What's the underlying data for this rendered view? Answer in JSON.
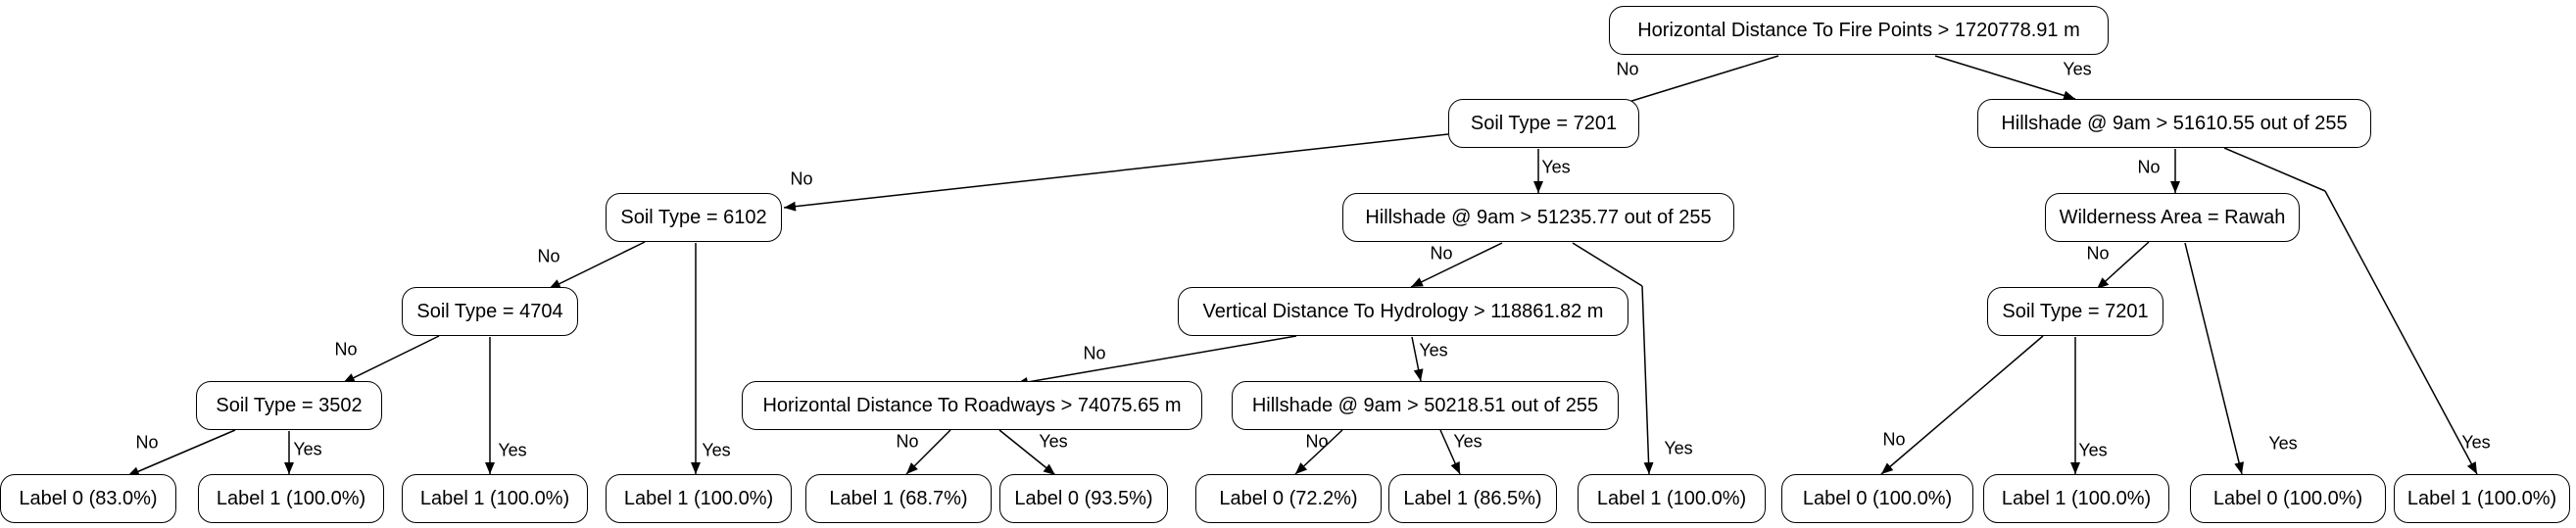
{
  "nodes": [
    {
      "id": "n0",
      "text": "Horizontal Distance To Fire Points > 1720778.91 m"
    },
    {
      "id": "n1",
      "text": "Soil Type = 7201"
    },
    {
      "id": "n2",
      "text": "Hillshade @ 9am > 51610.55 out of 255"
    },
    {
      "id": "n3",
      "text": "Soil Type = 6102"
    },
    {
      "id": "n4",
      "text": "Hillshade @ 9am > 51235.77 out of 255"
    },
    {
      "id": "n5",
      "text": "Wilderness Area = Rawah"
    },
    {
      "id": "n6",
      "text": "Soil Type = 4704"
    },
    {
      "id": "n7",
      "text": "Vertical Distance To Hydrology > 118861.82 m"
    },
    {
      "id": "n8",
      "text": "Soil Type = 7201"
    },
    {
      "id": "n9",
      "text": "Soil Type = 3502"
    },
    {
      "id": "n10",
      "text": "Horizontal Distance To Roadways > 74075.65 m"
    },
    {
      "id": "n11",
      "text": "Hillshade @ 9am > 50218.51 out of 255"
    },
    {
      "id": "l1",
      "text": "Label 0 (83.0%)"
    },
    {
      "id": "l2",
      "text": "Label 1 (100.0%)"
    },
    {
      "id": "l3",
      "text": "Label 1 (100.0%)"
    },
    {
      "id": "l4",
      "text": "Label 1 (100.0%)"
    },
    {
      "id": "l5",
      "text": "Label 1 (68.7%)"
    },
    {
      "id": "l6",
      "text": "Label 0 (93.5%)"
    },
    {
      "id": "l7",
      "text": "Label 0 (72.2%)"
    },
    {
      "id": "l8",
      "text": "Label 1 (86.5%)"
    },
    {
      "id": "l9",
      "text": "Label 1 (100.0%)"
    },
    {
      "id": "l10",
      "text": "Label 0 (100.0%)"
    },
    {
      "id": "l11",
      "text": "Label 1 (100.0%)"
    },
    {
      "id": "l12",
      "text": "Label 0 (100.0%)"
    },
    {
      "id": "l13",
      "text": "Label 1 (100.0%)"
    }
  ],
  "edges": [
    {
      "from": "n0",
      "to": "n1",
      "label": "No"
    },
    {
      "from": "n0",
      "to": "n2",
      "label": "Yes"
    },
    {
      "from": "n1",
      "to": "n3",
      "label": "No"
    },
    {
      "from": "n1",
      "to": "n4",
      "label": "Yes"
    },
    {
      "from": "n3",
      "to": "n6",
      "label": "No"
    },
    {
      "from": "n3",
      "to": "l4",
      "label": "Yes"
    },
    {
      "from": "n6",
      "to": "n9",
      "label": "No"
    },
    {
      "from": "n6",
      "to": "l3",
      "label": "Yes"
    },
    {
      "from": "n9",
      "to": "l1",
      "label": "No"
    },
    {
      "from": "n9",
      "to": "l2",
      "label": "Yes"
    },
    {
      "from": "n4",
      "to": "n7",
      "label": "No"
    },
    {
      "from": "n4",
      "to": "l9",
      "label": "Yes"
    },
    {
      "from": "n7",
      "to": "n10",
      "label": "No"
    },
    {
      "from": "n7",
      "to": "n11",
      "label": "Yes"
    },
    {
      "from": "n10",
      "to": "l5",
      "label": "No"
    },
    {
      "from": "n10",
      "to": "l6",
      "label": "Yes"
    },
    {
      "from": "n11",
      "to": "l7",
      "label": "No"
    },
    {
      "from": "n11",
      "to": "l8",
      "label": "Yes"
    },
    {
      "from": "n2",
      "to": "n5",
      "label": "No"
    },
    {
      "from": "n2",
      "to": "l13",
      "label": "Yes"
    },
    {
      "from": "n5",
      "to": "n8",
      "label": "No"
    },
    {
      "from": "n5",
      "to": "l12",
      "label": "Yes"
    },
    {
      "from": "n8",
      "to": "l10",
      "label": "No"
    },
    {
      "from": "n8",
      "to": "l11",
      "label": "Yes"
    }
  ]
}
